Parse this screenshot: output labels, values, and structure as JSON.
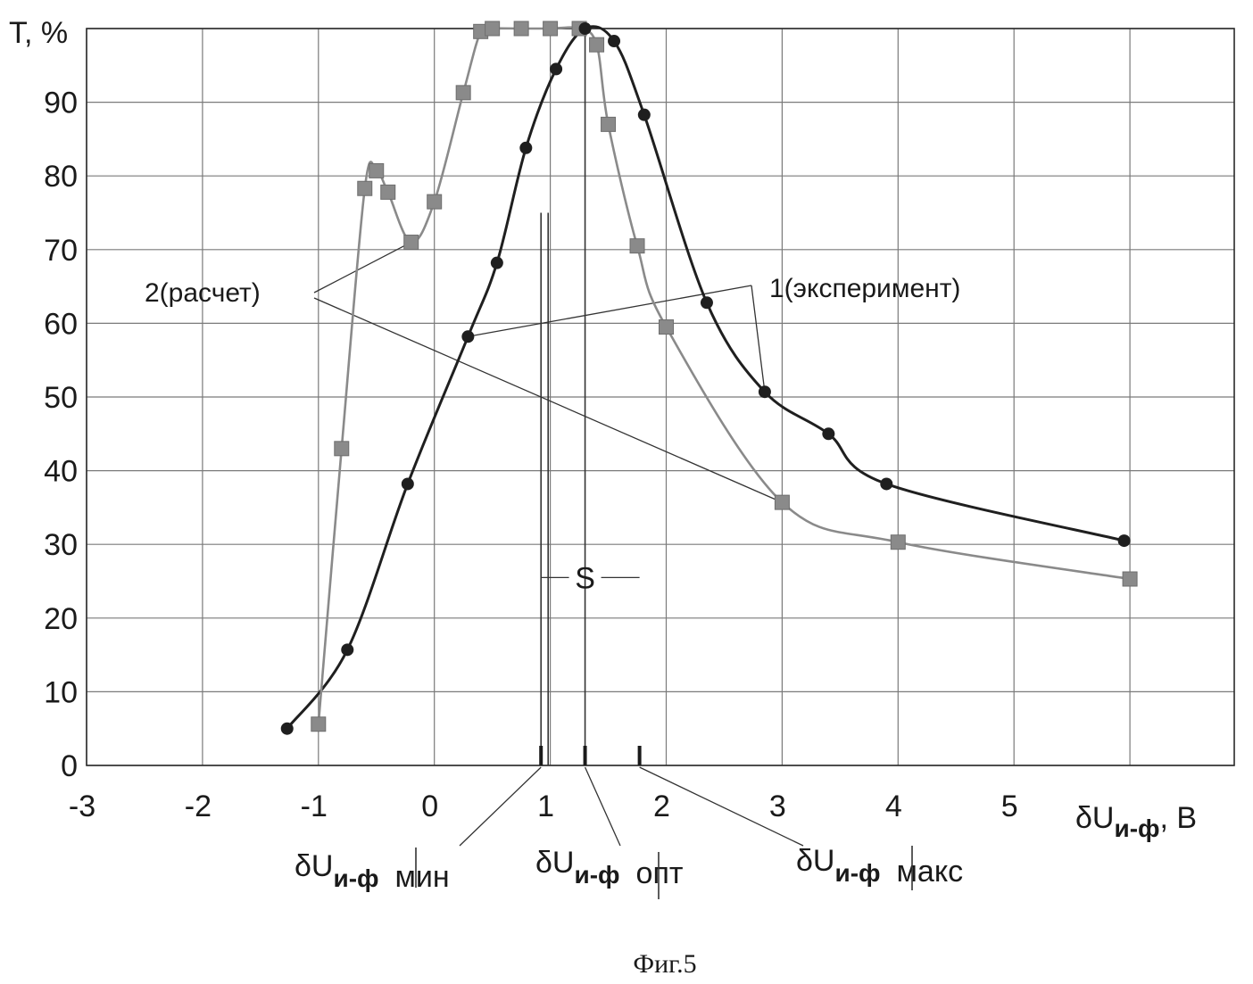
{
  "chart_data": {
    "type": "line",
    "ylabel": "T, %",
    "xlabel_main": "δU",
    "xlabel_sub": "и-ф",
    "xlabel_unit": ", В",
    "xlim": [
      -3,
      6.9
    ],
    "ylim": [
      0,
      100
    ],
    "x_ticks": [
      -3,
      -2,
      -1,
      0,
      1,
      2,
      3,
      4,
      5
    ],
    "y_ticks": [
      0,
      10,
      20,
      30,
      40,
      50,
      60,
      70,
      80,
      90
    ],
    "series": [
      {
        "name": "1(эксперимент)",
        "marker": "circle",
        "color": "#1f1f1f",
        "points": [
          [
            -1.27,
            5
          ],
          [
            -0.75,
            15.7
          ],
          [
            -0.23,
            38.2
          ],
          [
            0.29,
            58.2
          ],
          [
            0.54,
            68.2
          ],
          [
            0.79,
            83.8
          ],
          [
            1.05,
            94.5
          ],
          [
            1.3,
            100
          ],
          [
            1.55,
            98.3
          ],
          [
            1.81,
            88.3
          ],
          [
            2.35,
            62.8
          ],
          [
            2.85,
            50.7
          ],
          [
            3.4,
            45
          ],
          [
            3.9,
            38.2
          ],
          [
            5.95,
            30.5
          ]
        ]
      },
      {
        "name": "2(расчет)",
        "marker": "square",
        "color": "#8a8a8a",
        "points": [
          [
            -1.0,
            5.6
          ],
          [
            -0.8,
            43
          ],
          [
            -0.6,
            78.3
          ],
          [
            -0.5,
            80.7
          ],
          [
            -0.4,
            77.8
          ],
          [
            -0.2,
            71
          ],
          [
            0.0,
            76.5
          ],
          [
            0.25,
            91.3
          ],
          [
            0.4,
            99.6
          ],
          [
            0.5,
            100
          ],
          [
            0.75,
            100.2
          ],
          [
            1.0,
            100.2
          ],
          [
            1.25,
            100.2
          ],
          [
            1.4,
            97.8
          ],
          [
            1.5,
            87
          ],
          [
            1.75,
            70.5
          ],
          [
            2.0,
            59.5
          ],
          [
            3.0,
            35.7
          ],
          [
            4.0,
            30.3
          ],
          [
            6.0,
            25.3
          ]
        ]
      }
    ],
    "markers": {
      "min_x": 0.92,
      "opt_x": 1.3,
      "max_x": 1.77,
      "s_label": "S",
      "min_label_main": "δU",
      "min_label_sub": "и-ф",
      "min_label_tail": "мин",
      "opt_label_main": "δU",
      "opt_label_sub": "и-ф",
      "opt_label_tail": "опт",
      "max_label_main": "δU",
      "max_label_sub": "и-ф",
      "max_label_tail": "макс"
    },
    "annotations": {
      "label_calc": "2(расчет)",
      "label_exp": "1(эксперимент)"
    },
    "caption": "Фиг.5"
  }
}
